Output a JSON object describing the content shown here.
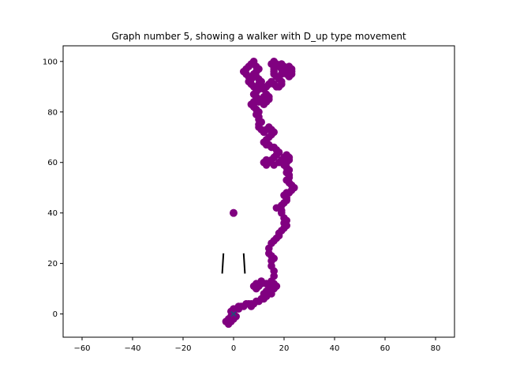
{
  "chart_data": {
    "type": "scatter",
    "title": "Graph number 5, showing a walker with D_up type movement",
    "xlabel": "",
    "ylabel": "",
    "xlim": [
      -67.5,
      87.5
    ],
    "ylim": [
      -9.2,
      106.2
    ],
    "xticks": [
      -60,
      -40,
      -20,
      0,
      20,
      40,
      60,
      80
    ],
    "yticks": [
      0,
      20,
      40,
      60,
      80,
      100
    ],
    "grid": false,
    "colors": {
      "walk": "#800080",
      "start_marker": "#1f4e79",
      "lines": "#000000"
    },
    "walk": {
      "name": "",
      "points": [
        [
          0,
          0
        ],
        [
          -1,
          -1
        ],
        [
          -2,
          -2
        ],
        [
          -3,
          -3
        ],
        [
          -2,
          -4
        ],
        [
          -1,
          -3
        ],
        [
          0,
          -2
        ],
        [
          1,
          -1
        ],
        [
          0,
          0
        ],
        [
          -1,
          1
        ],
        [
          0,
          2
        ],
        [
          1,
          2
        ],
        [
          2,
          2
        ],
        [
          2,
          3
        ],
        [
          3,
          3
        ],
        [
          4,
          3
        ],
        [
          5,
          4
        ],
        [
          6,
          4
        ],
        [
          7,
          4
        ],
        [
          7,
          3
        ],
        [
          8,
          4
        ],
        [
          9,
          5
        ],
        [
          10,
          5
        ],
        [
          11,
          6
        ],
        [
          12,
          6
        ],
        [
          13,
          7
        ],
        [
          14,
          8
        ],
        [
          15,
          9
        ],
        [
          16,
          10
        ],
        [
          17,
          11
        ],
        [
          16,
          12
        ],
        [
          15,
          12
        ],
        [
          13,
          12
        ],
        [
          11,
          12
        ],
        [
          10,
          11
        ],
        [
          9,
          10
        ],
        [
          8,
          11
        ],
        [
          9,
          12
        ],
        [
          11,
          13
        ],
        [
          13,
          12
        ],
        [
          14,
          10
        ],
        [
          15,
          8
        ],
        [
          13,
          7
        ],
        [
          12,
          8
        ],
        [
          13,
          9
        ],
        [
          14,
          11
        ],
        [
          15,
          13
        ],
        [
          16,
          15
        ],
        [
          16,
          17
        ],
        [
          15,
          19
        ],
        [
          15,
          21
        ],
        [
          16,
          22
        ],
        [
          15,
          23
        ],
        [
          14,
          24
        ],
        [
          14,
          26
        ],
        [
          15,
          28
        ],
        [
          16,
          29
        ],
        [
          17,
          30
        ],
        [
          18,
          31
        ],
        [
          18,
          32
        ],
        [
          19,
          33
        ],
        [
          20,
          34
        ],
        [
          21,
          35
        ],
        [
          20,
          36
        ],
        [
          21,
          37
        ],
        [
          20,
          38
        ],
        [
          19,
          40
        ],
        [
          19,
          41
        ],
        [
          18,
          42
        ],
        [
          17,
          42
        ],
        [
          19,
          43
        ],
        [
          20,
          44
        ],
        [
          21,
          45
        ],
        [
          21,
          46
        ],
        [
          20,
          47
        ],
        [
          21,
          48
        ],
        [
          22,
          48
        ],
        [
          23,
          49
        ],
        [
          24,
          50
        ],
        [
          23,
          51
        ],
        [
          22,
          52
        ],
        [
          21,
          53
        ],
        [
          22,
          54
        ],
        [
          22,
          55
        ],
        [
          21,
          56
        ],
        [
          22,
          57
        ],
        [
          21,
          58
        ],
        [
          20,
          59
        ],
        [
          21,
          60
        ],
        [
          22,
          61
        ],
        [
          22,
          62
        ],
        [
          21,
          63
        ],
        [
          20,
          62
        ],
        [
          19,
          61
        ],
        [
          18,
          60
        ],
        [
          16,
          59
        ],
        [
          14,
          60
        ],
        [
          13,
          61
        ],
        [
          12,
          60
        ],
        [
          13,
          59
        ],
        [
          14,
          60
        ],
        [
          15,
          61
        ],
        [
          16,
          62
        ],
        [
          17,
          63
        ],
        [
          18,
          64
        ],
        [
          17,
          65
        ],
        [
          16,
          66
        ],
        [
          15,
          66
        ],
        [
          14,
          67
        ],
        [
          13,
          67
        ],
        [
          12,
          68
        ],
        [
          13,
          69
        ],
        [
          14,
          70
        ],
        [
          15,
          71
        ],
        [
          16,
          72
        ],
        [
          15,
          73
        ],
        [
          14,
          74
        ],
        [
          13,
          73
        ],
        [
          12,
          72
        ],
        [
          11,
          73
        ],
        [
          10,
          74
        ],
        [
          10,
          75
        ],
        [
          11,
          76
        ],
        [
          10,
          77
        ],
        [
          10,
          78
        ],
        [
          9,
          79
        ],
        [
          10,
          80
        ],
        [
          9,
          81
        ],
        [
          8,
          82
        ],
        [
          7,
          83
        ],
        [
          8,
          84
        ],
        [
          9,
          85
        ],
        [
          10,
          84
        ],
        [
          11,
          85
        ],
        [
          12,
          86
        ],
        [
          13,
          87
        ],
        [
          14,
          86
        ],
        [
          14,
          85
        ],
        [
          13,
          84
        ],
        [
          12,
          83
        ],
        [
          10,
          84
        ],
        [
          9,
          86
        ],
        [
          8,
          87
        ],
        [
          9,
          88
        ],
        [
          10,
          89
        ],
        [
          8,
          90
        ],
        [
          7,
          91
        ],
        [
          6,
          92
        ],
        [
          7,
          93
        ],
        [
          6,
          94
        ],
        [
          5,
          95
        ],
        [
          4,
          96
        ],
        [
          5,
          97
        ],
        [
          6,
          98
        ],
        [
          7,
          99
        ],
        [
          8,
          100
        ],
        [
          8,
          99
        ],
        [
          9,
          98
        ],
        [
          10,
          97
        ],
        [
          9,
          96
        ],
        [
          8,
          95
        ],
        [
          9,
          94
        ],
        [
          10,
          93
        ],
        [
          11,
          92
        ],
        [
          10,
          91
        ],
        [
          11,
          90
        ],
        [
          12,
          89
        ],
        [
          13,
          90
        ],
        [
          14,
          91
        ],
        [
          15,
          92
        ],
        [
          16,
          91
        ],
        [
          17,
          90
        ],
        [
          18,
          90
        ],
        [
          19,
          91
        ],
        [
          19,
          92
        ],
        [
          18,
          93
        ],
        [
          17,
          94
        ],
        [
          16,
          95
        ],
        [
          16,
          96
        ],
        [
          16,
          97
        ],
        [
          16,
          98
        ],
        [
          15,
          99
        ],
        [
          16,
          100
        ],
        [
          17,
          99
        ],
        [
          18,
          98
        ],
        [
          19,
          97
        ],
        [
          20,
          96
        ],
        [
          21,
          95
        ],
        [
          22,
          94
        ],
        [
          23,
          95
        ],
        [
          22,
          96
        ],
        [
          21,
          97
        ],
        [
          22,
          98
        ],
        [
          23,
          97
        ],
        [
          23,
          96
        ],
        [
          22,
          95
        ],
        [
          21,
          96
        ],
        [
          20,
          97
        ],
        [
          20,
          98
        ],
        [
          19,
          99
        ],
        [
          19,
          98
        ],
        [
          20,
          97
        ],
        [
          20,
          96
        ],
        [
          19,
          95
        ]
      ]
    },
    "start_marker": {
      "shape": "x",
      "x": 0,
      "y": 0
    },
    "isolated_point": {
      "x": 0,
      "y": 40
    },
    "segments": [
      {
        "x1": -4,
        "y1": 24,
        "x2": -4.5,
        "y2": 16
      },
      {
        "x1": 4,
        "y1": 24,
        "x2": 4.5,
        "y2": 16
      }
    ]
  }
}
